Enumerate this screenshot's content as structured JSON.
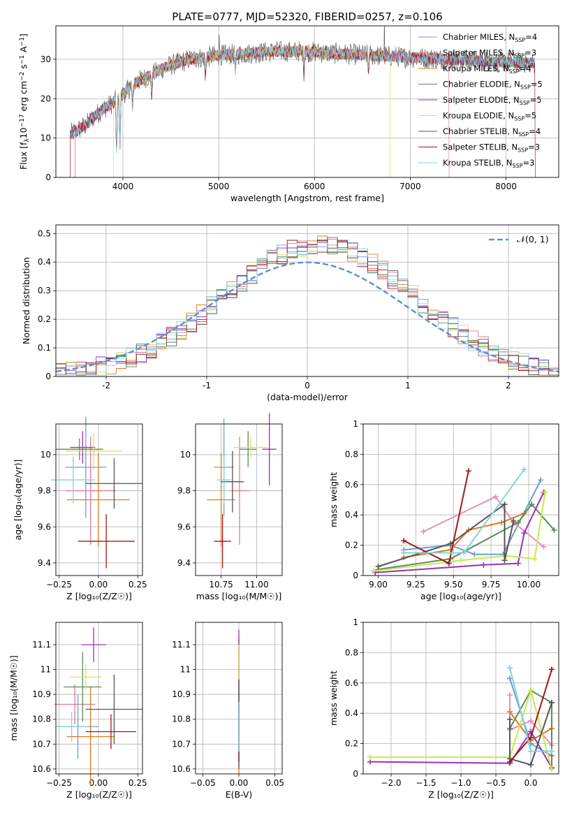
{
  "figure": {
    "title": "PLATE=0777, MJD=52320, FIBERID=0257, z=0.106"
  },
  "colors": {
    "palette": [
      "#6a9fd6",
      "#e07b91",
      "#e07a1f",
      "#5a8a5a",
      "#9a31b8",
      "#d6e35a",
      "#555555",
      "#a01818",
      "#7fd5df"
    ],
    "normal_curve": "#5b8fd6",
    "plus_colors": [
      "#6a9fd6",
      "#e88fb8",
      "#e07a1f",
      "#5a8a5a",
      "#9a31b8",
      "#c8e84a",
      "#555555",
      "#a01818",
      "#7fd5df"
    ]
  },
  "legend_spectrum": [
    {
      "base": "Chabrier MILES, N",
      "sub": "SSP",
      "suffix": "=4"
    },
    {
      "base": "Salpeter MILES, N",
      "sub": "SSP",
      "suffix": "=3"
    },
    {
      "base": "Kroupa MILES, N",
      "sub": "SSP",
      "suffix": "=4"
    },
    {
      "base": "Chabrier ELODIE, N",
      "sub": "SSP",
      "suffix": "=5"
    },
    {
      "base": "Salpeter ELODIE, N",
      "sub": "SSP",
      "suffix": "=5"
    },
    {
      "base": "Kroupa ELODIE, N",
      "sub": "SSP",
      "suffix": "=5"
    },
    {
      "base": "Chabrier STELIB, N",
      "sub": "SSP",
      "suffix": "=4"
    },
    {
      "base": "Salpeter STELIB, N",
      "sub": "SSP",
      "suffix": "=3"
    },
    {
      "base": "Kroupa STELIB, N",
      "sub": "SSP",
      "suffix": "=3"
    }
  ],
  "legend_hist": {
    "label": "𝒩(0, 1)"
  },
  "chart_data": [
    {
      "id": "spectrum",
      "type": "line",
      "xlabel": "wavelength [Angstrom, rest frame]",
      "ylabel_parts": {
        "a": "Flux [f",
        "sub": "λ",
        "b": "10",
        "sup1": "−17",
        "c": " erg cm",
        "sup2": "−2",
        "d": " s",
        "sup3": "−1",
        "e": " A",
        "sup4": "−1",
        "f": "]"
      },
      "xlim": [
        3300,
        8550
      ],
      "ylim": [
        0,
        38.5
      ],
      "xticks": [
        4000,
        5000,
        6000,
        7000,
        8000
      ],
      "yticks": [
        0,
        10,
        20,
        30
      ],
      "continuum": [
        [
          3450,
          11
        ],
        [
          3600,
          13
        ],
        [
          3700,
          15.5
        ],
        [
          3800,
          17.5
        ],
        [
          3900,
          19
        ],
        [
          4000,
          21
        ],
        [
          4100,
          23.5
        ],
        [
          4200,
          25
        ],
        [
          4300,
          26
        ],
        [
          4400,
          27.5
        ],
        [
          4500,
          28.5
        ],
        [
          4700,
          30
        ],
        [
          5000,
          31
        ],
        [
          5300,
          31.5
        ],
        [
          5600,
          32
        ],
        [
          5900,
          32
        ],
        [
          6200,
          31.5
        ],
        [
          6600,
          31
        ],
        [
          7000,
          30.5
        ],
        [
          7400,
          30
        ],
        [
          7800,
          29.5
        ],
        [
          8300,
          29
        ]
      ],
      "noise_amplitude": 2.5,
      "dips": [
        [
          3934,
          14
        ],
        [
          3969,
          12
        ],
        [
          4101,
          6
        ],
        [
          4300,
          5
        ],
        [
          4861,
          5
        ],
        [
          5175,
          4
        ],
        [
          5890,
          5
        ],
        [
          6563,
          4
        ]
      ],
      "spikes": [
        [
          5005,
          7
        ],
        [
          6730,
          8
        ]
      ]
    },
    {
      "id": "residual_hist",
      "type": "histogram",
      "xlabel": "(data-model)/error",
      "ylabel": "Normed distribution",
      "xlim": [
        -2.5,
        2.5
      ],
      "ylim": [
        0,
        0.53
      ],
      "xticks": [
        -2,
        -1,
        0,
        1,
        2
      ],
      "yticks": [
        0.0,
        0.1,
        0.2,
        0.3,
        0.4,
        0.5
      ],
      "bin_width": 0.1,
      "bin_centers_range": [
        -2.45,
        2.45
      ],
      "skew": 0.12,
      "peak": 0.46,
      "sigma": 0.95,
      "normal_curve": {
        "mu": 0,
        "sigma": 1
      }
    },
    {
      "id": "age_vs_Z",
      "type": "scatter-errorbar",
      "xlabel": "Z [log₁₀(Z/Z☉)]",
      "ylabel": "age  [log₁₀(age/yr)]",
      "xlim": [
        -0.27,
        0.28
      ],
      "ylim": [
        9.33,
        10.17
      ],
      "xticks": [
        -0.25,
        0,
        0.25
      ],
      "xticklabels": [
        "−0.25",
        "0.00",
        "0.25"
      ],
      "yticks": [
        9.4,
        9.6,
        9.8,
        10.0
      ],
      "points": [
        {
          "x": -0.08,
          "xerr": 0.13,
          "y": 9.93,
          "yerr": 0.28
        },
        {
          "x": -0.05,
          "xerr": 0.16,
          "y": 9.8,
          "yerr": 0.3
        },
        {
          "x": 0.0,
          "xerr": 0.2,
          "y": 9.75,
          "yerr": 0.26
        },
        {
          "x": -0.12,
          "xerr": 0.15,
          "y": 10.03,
          "yerr": 0.06
        },
        {
          "x": -0.1,
          "xerr": 0.08,
          "y": 10.04,
          "yerr": 0.09
        },
        {
          "x": -0.03,
          "xerr": 0.18,
          "y": 10.02,
          "yerr": 0.1
        },
        {
          "x": 0.1,
          "xerr": 0.18,
          "y": 9.84,
          "yerr": 0.14
        },
        {
          "x": 0.05,
          "xerr": 0.18,
          "y": 9.52,
          "yerr": 0.15
        },
        {
          "x": -0.16,
          "xerr": 0.14,
          "y": 9.86,
          "yerr": 0.13
        }
      ]
    },
    {
      "id": "age_vs_mass",
      "type": "scatter-errorbar",
      "xlabel": "mass [log₁₀(M/M☉)]",
      "ylabel": "",
      "xlim": [
        10.57,
        11.18
      ],
      "ylim": [
        9.33,
        10.17
      ],
      "xticks": [
        10.75,
        11.0
      ],
      "xticklabels": [
        "10.75",
        "11.00"
      ],
      "yticks": [
        9.4,
        9.6,
        9.8,
        10.0
      ],
      "points": [
        {
          "x": 10.77,
          "xerr": 0.07,
          "y": 9.93,
          "yerr": 0.27
        },
        {
          "x": 10.88,
          "xerr": 0.07,
          "y": 9.8,
          "yerr": 0.3
        },
        {
          "x": 10.75,
          "xerr": 0.1,
          "y": 9.75,
          "yerr": 0.26
        },
        {
          "x": 10.94,
          "xerr": 0.06,
          "y": 10.03,
          "yerr": 0.1
        },
        {
          "x": 11.09,
          "xerr": 0.05,
          "y": 10.03,
          "yerr": 0.2
        },
        {
          "x": 10.96,
          "xerr": 0.12,
          "y": 10.04,
          "yerr": 0.06
        },
        {
          "x": 10.83,
          "xerr": 0.08,
          "y": 9.85,
          "yerr": 0.17
        },
        {
          "x": 10.76,
          "xerr": 0.06,
          "y": 9.52,
          "yerr": 0.15
        },
        {
          "x": 10.77,
          "xerr": 0.05,
          "y": 9.86,
          "yerr": 0.13
        }
      ]
    },
    {
      "id": "weight_vs_age",
      "type": "line",
      "xlabel": "age  [log₁₀(age/yr)]",
      "ylabel": "mass weight",
      "xlim": [
        8.9,
        10.2
      ],
      "ylim": [
        0,
        1.0
      ],
      "xticks": [
        9.0,
        9.25,
        9.5,
        9.75,
        10.0
      ],
      "xticklabels": [
        "9.00",
        "9.25",
        "9.50",
        "9.75",
        "10.00"
      ],
      "yticks": [
        0.0,
        0.2,
        0.4,
        0.6,
        0.8,
        1.0
      ],
      "series": [
        {
          "points": [
            [
              9.17,
              0.17
            ],
            [
              9.48,
              0.2
            ],
            [
              9.64,
              0.14
            ],
            [
              9.83,
              0.14
            ],
            [
              10.08,
              0.63
            ]
          ]
        },
        {
          "points": [
            [
              9.3,
              0.29
            ],
            [
              9.78,
              0.52
            ],
            [
              9.9,
              0.35
            ],
            [
              10.1,
              0.19
            ]
          ]
        },
        {
          "points": [
            [
              9.17,
              0.12
            ],
            [
              9.48,
              0.17
            ],
            [
              9.6,
              0.3
            ],
            [
              9.82,
              0.35
            ],
            [
              9.97,
              0.41
            ]
          ]
        },
        {
          "points": [
            [
              9.0,
              0.04
            ],
            [
              9.48,
              0.11
            ],
            [
              9.93,
              0.35
            ],
            [
              10.02,
              0.47
            ],
            [
              10.17,
              0.3
            ]
          ]
        },
        {
          "points": [
            [
              8.98,
              0.02
            ],
            [
              9.7,
              0.07
            ],
            [
              9.93,
              0.08
            ],
            [
              9.97,
              0.28
            ],
            [
              10.1,
              0.55
            ]
          ]
        },
        {
          "points": [
            [
              8.97,
              0.03
            ],
            [
              9.55,
              0.1
            ],
            [
              9.85,
              0.13
            ],
            [
              10.04,
              0.11
            ],
            [
              10.11,
              0.55
            ]
          ]
        },
        {
          "points": [
            [
              9.0,
              0.06
            ],
            [
              9.48,
              0.21
            ],
            [
              9.84,
              0.47
            ],
            [
              9.84,
              0.1
            ],
            [
              9.9,
              0.36
            ]
          ]
        },
        {
          "points": [
            [
              9.17,
              0.23
            ],
            [
              9.47,
              0.08
            ],
            [
              9.6,
              0.69
            ]
          ]
        },
        {
          "points": [
            [
              9.17,
              0.15
            ],
            [
              9.57,
              0.15
            ],
            [
              9.97,
              0.7
            ]
          ]
        }
      ]
    },
    {
      "id": "mass_vs_Z",
      "type": "scatter-errorbar",
      "xlabel": "Z [log₁₀(Z/Z☉)]",
      "ylabel": "mass [log₁₀(M/M☉)]",
      "xlim": [
        -0.27,
        0.28
      ],
      "ylim": [
        10.58,
        11.19
      ],
      "xticks": [
        -0.25,
        0,
        0.25
      ],
      "xticklabels": [
        "−0.25",
        "0.00",
        "0.25"
      ],
      "yticks": [
        10.6,
        10.7,
        10.8,
        10.9,
        11.0,
        11.1
      ],
      "points": [
        {
          "x": -0.13,
          "xerr": 0.13,
          "y": 10.77,
          "yerr": 0.13
        },
        {
          "x": -0.15,
          "xerr": 0.13,
          "y": 10.86,
          "yerr": 0.08
        },
        {
          "x": -0.05,
          "xerr": 0.15,
          "y": 10.73,
          "yerr": 0.2
        },
        {
          "x": -0.1,
          "xerr": 0.12,
          "y": 10.93,
          "yerr": 0.14
        },
        {
          "x": -0.03,
          "xerr": 0.08,
          "y": 11.1,
          "yerr": 0.07
        },
        {
          "x": -0.08,
          "xerr": 0.1,
          "y": 10.97,
          "yerr": 0.05
        },
        {
          "x": 0.1,
          "xerr": 0.18,
          "y": 10.84,
          "yerr": 0.14
        },
        {
          "x": 0.08,
          "xerr": 0.16,
          "y": 10.75,
          "yerr": 0.07
        },
        {
          "x": -0.17,
          "xerr": 0.1,
          "y": 10.77,
          "yerr": 0.06
        }
      ]
    },
    {
      "id": "mass_vs_ebv",
      "type": "scatter-errorbar",
      "xlabel": "E(B-V)",
      "ylabel": "",
      "xlim": [
        -0.06,
        0.06
      ],
      "ylim": [
        10.58,
        11.19
      ],
      "xticks": [
        -0.05,
        0.0,
        0.05
      ],
      "xticklabels": [
        "−0.05",
        "0.00",
        "0.05"
      ],
      "yticks": [
        10.6,
        10.7,
        10.8,
        10.9,
        11.0,
        11.1
      ],
      "points": [
        {
          "x": 0,
          "xerr": 0,
          "y": 10.76,
          "yerr": 0.15
        },
        {
          "x": 0,
          "xerr": 0,
          "y": 10.95,
          "yerr": 0.15
        },
        {
          "x": 0,
          "xerr": 0,
          "y": 10.75,
          "yerr": 0.17
        },
        {
          "x": 0,
          "xerr": 0,
          "y": 10.93,
          "yerr": 0.2
        },
        {
          "x": 0,
          "xerr": 0,
          "y": 11.0,
          "yerr": 0.16
        },
        {
          "x": 0,
          "xerr": 0,
          "y": 10.98,
          "yerr": 0.12
        },
        {
          "x": 0,
          "xerr": 0,
          "y": 10.78,
          "yerr": 0.18
        },
        {
          "x": 0,
          "xerr": 0,
          "y": 10.75,
          "yerr": 0.12
        },
        {
          "x": 0,
          "xerr": 0,
          "y": 10.77,
          "yerr": 0.1
        }
      ]
    },
    {
      "id": "weight_vs_Z",
      "type": "line",
      "xlabel": "Z [log₁₀(Z/Z☉)]",
      "ylabel": "mass weight",
      "xlim": [
        -2.4,
        0.4
      ],
      "ylim": [
        0,
        1.0
      ],
      "xticks": [
        -2.0,
        -1.5,
        -1.0,
        -0.5,
        0.0
      ],
      "xticklabels": [
        "−2.0",
        "−1.5",
        "−1.0",
        "−0.5",
        "0.0"
      ],
      "yticks": [
        0.0,
        0.2,
        0.4,
        0.6,
        0.8,
        1.0
      ],
      "series": [
        {
          "points": [
            [
              -0.3,
              0.63
            ],
            [
              0.0,
              0.2
            ],
            [
              0.3,
              0.12
            ]
          ]
        },
        {
          "points": [
            [
              -0.3,
              0.52
            ],
            [
              -0.3,
              0.29
            ],
            [
              0.0,
              0.35
            ],
            [
              0.3,
              0.19
            ]
          ]
        },
        {
          "points": [
            [
              -0.3,
              0.41
            ],
            [
              0.0,
              0.22
            ],
            [
              0.3,
              0.3
            ],
            [
              0.3,
              0.12
            ]
          ]
        },
        {
          "points": [
            [
              -0.3,
              0.3
            ],
            [
              0.0,
              0.55
            ],
            [
              0.3,
              0.47
            ],
            [
              0.3,
              0.04
            ]
          ]
        },
        {
          "points": [
            [
              -2.3,
              0.08
            ],
            [
              -0.3,
              0.07
            ],
            [
              0.0,
              0.28
            ],
            [
              0.3,
              0.04
            ]
          ]
        },
        {
          "points": [
            [
              -2.3,
              0.11
            ],
            [
              -0.3,
              0.11
            ],
            [
              0.0,
              0.55
            ],
            [
              0.3,
              0.03
            ]
          ]
        },
        {
          "points": [
            [
              -0.3,
              0.36
            ],
            [
              -0.3,
              0.1
            ],
            [
              0.0,
              0.06
            ],
            [
              0.3,
              0.47
            ]
          ]
        },
        {
          "points": [
            [
              -0.3,
              0.08
            ],
            [
              0.0,
              0.24
            ],
            [
              0.3,
              0.69
            ]
          ]
        },
        {
          "points": [
            [
              -0.3,
              0.7
            ],
            [
              0.0,
              0.15
            ],
            [
              0.3,
              0.15
            ]
          ]
        }
      ]
    }
  ]
}
